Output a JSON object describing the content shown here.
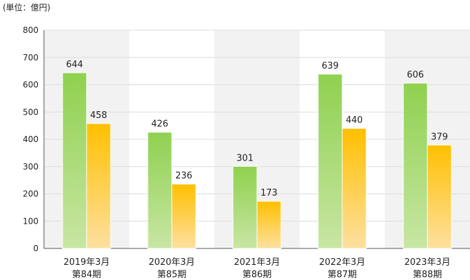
{
  "unit_label": "(単位：億円)",
  "chart_data": {
    "type": "bar",
    "categories": [
      [
        "2019年3月",
        "第84期"
      ],
      [
        "2020年3月",
        "第85期"
      ],
      [
        "2021年3月",
        "第86期"
      ],
      [
        "2022年3月",
        "第87期"
      ],
      [
        "2023年3月",
        "第88期"
      ]
    ],
    "series": [
      {
        "values": [
          644,
          426,
          301,
          639,
          606
        ],
        "color": "#8fd14f"
      },
      {
        "values": [
          458,
          236,
          173,
          440,
          379
        ],
        "color": "#ffc000"
      }
    ],
    "ylim": [
      0,
      800
    ],
    "yticks": [
      0,
      100,
      200,
      300,
      400,
      500,
      600,
      700,
      800
    ],
    "grid": true,
    "alternating_bands": true,
    "band_color": "#f2f2f2"
  }
}
